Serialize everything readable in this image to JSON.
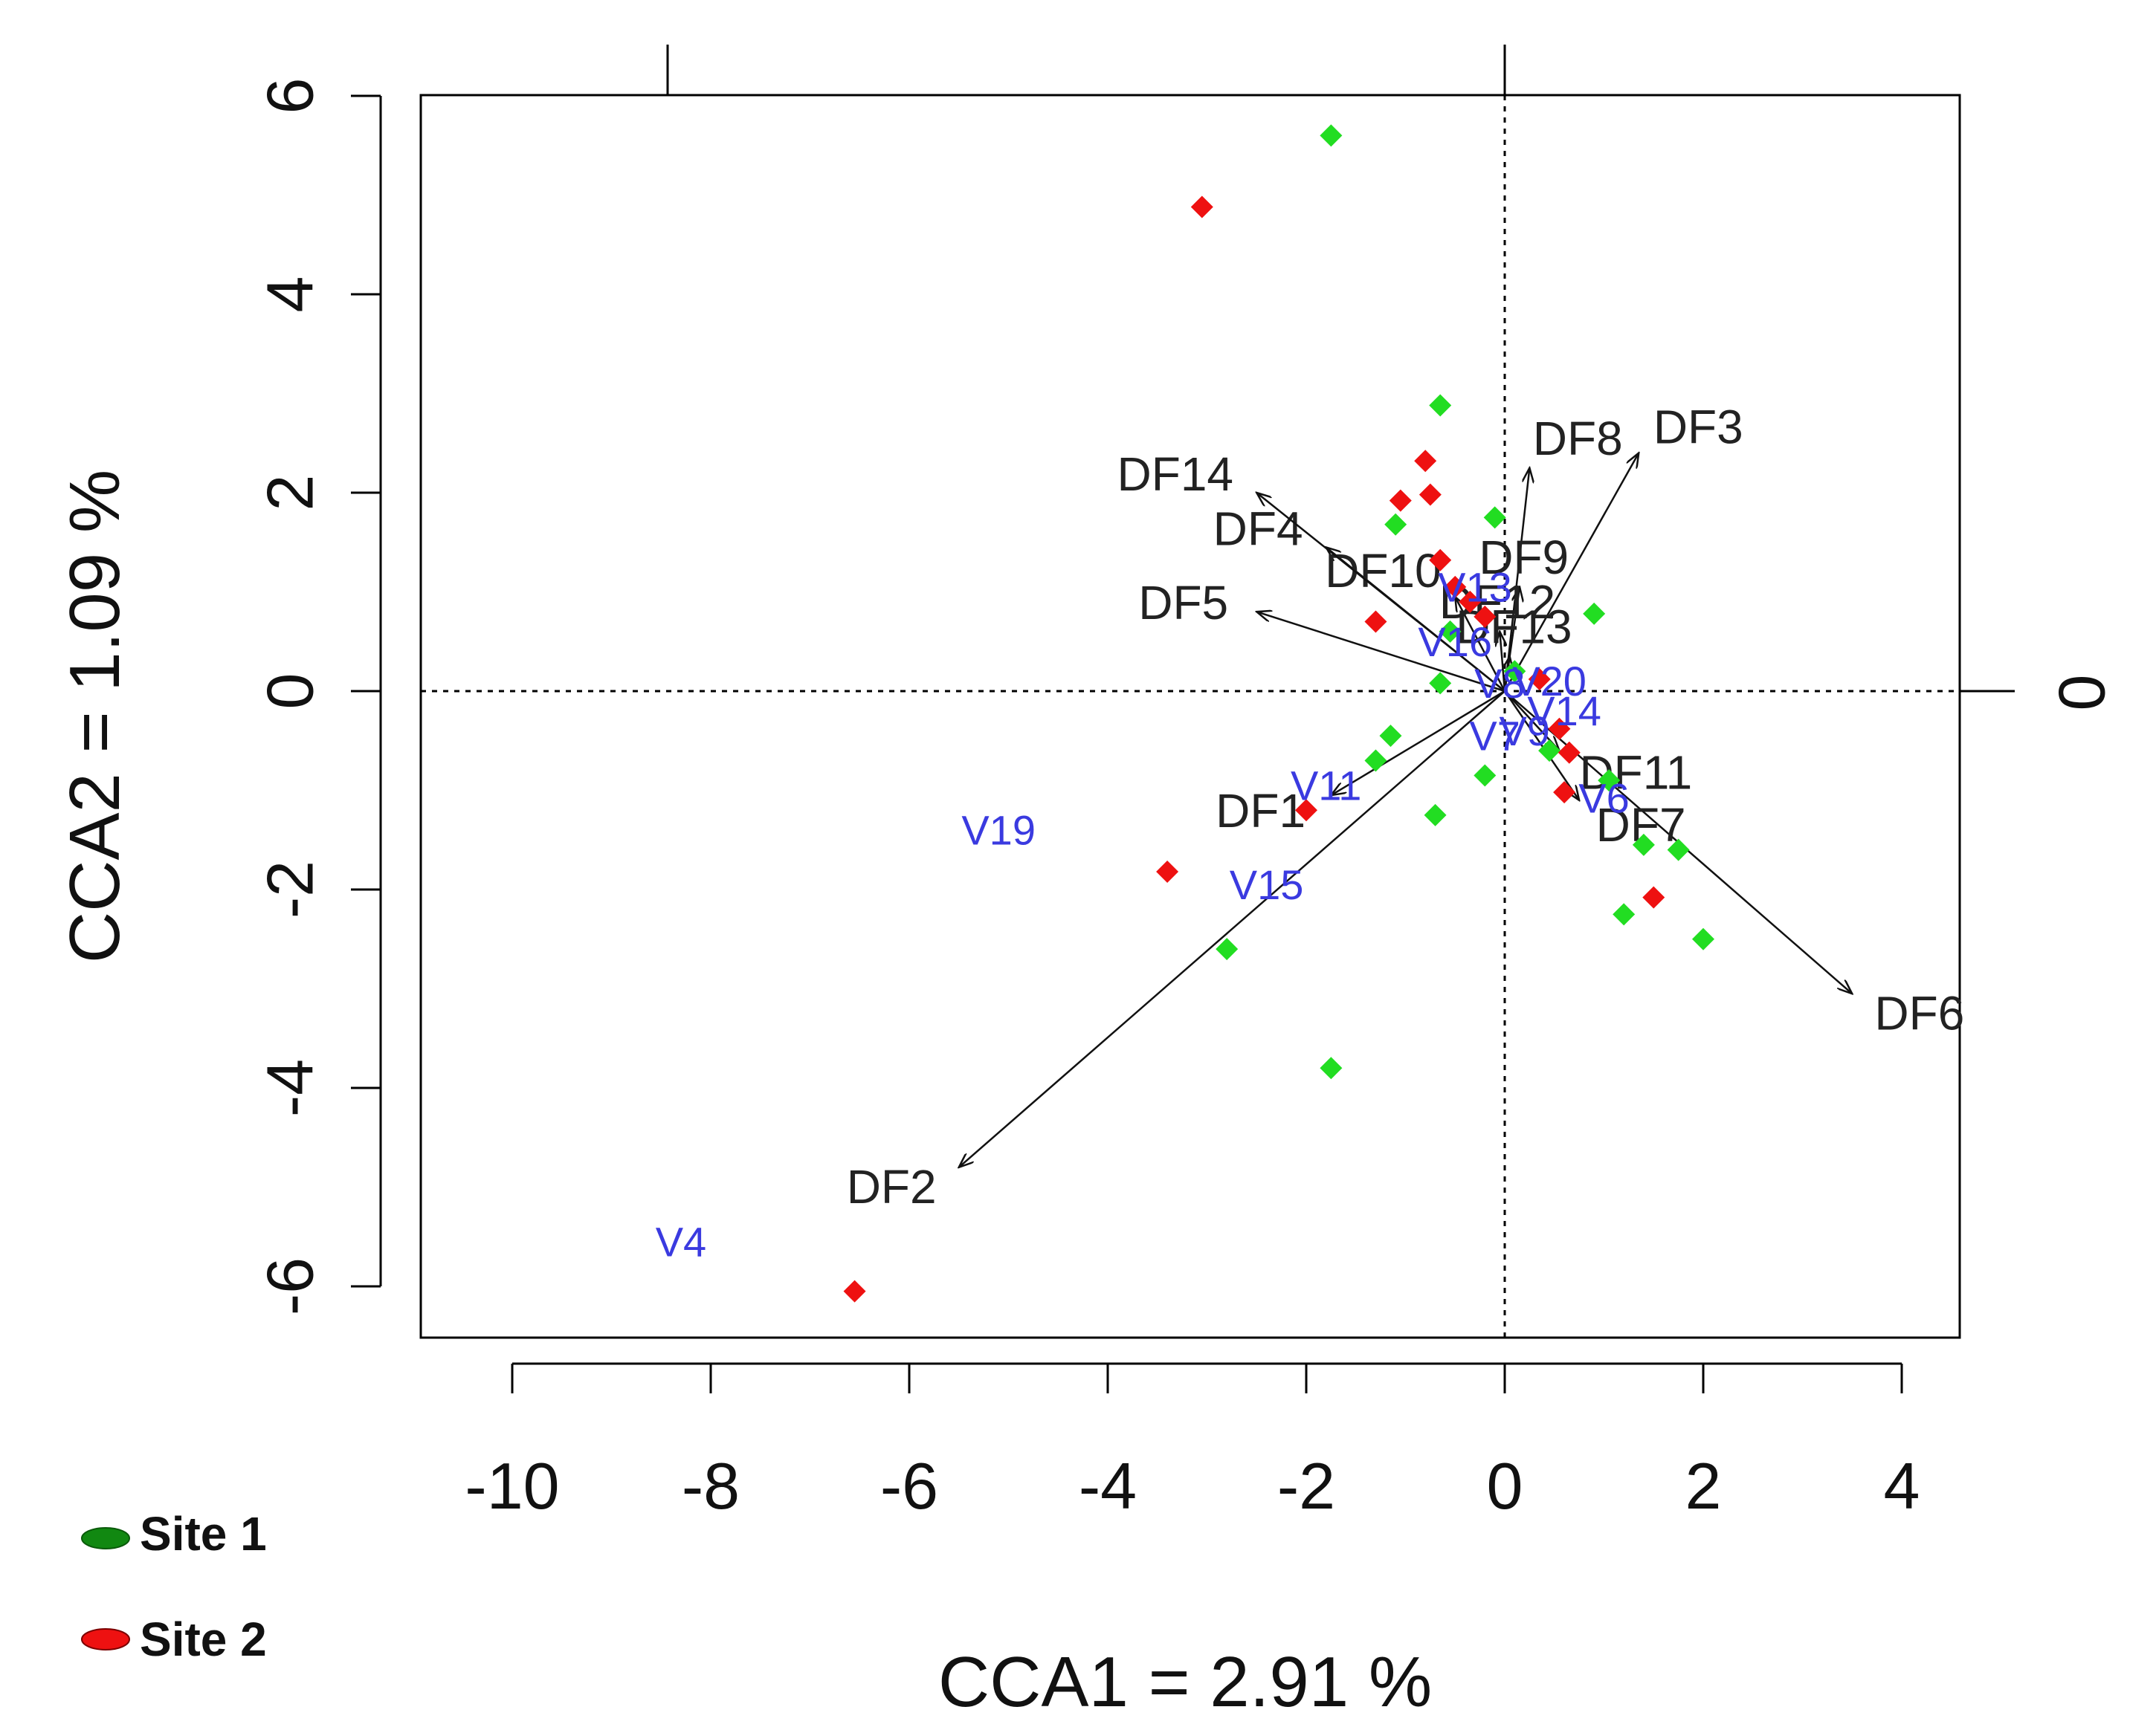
{
  "chart_data": {
    "type": "scatter",
    "subtype": "CCA biplot",
    "xlabel": "CCA1 = 2.91 %",
    "ylabel": "CCA2 = 1.09 %",
    "xlim": [
      -10.5,
      4.6
    ],
    "ylim": [
      -6.6,
      6.1
    ],
    "x_ticks": [
      "-10",
      "-8",
      "-6",
      "-4",
      "-2",
      "0",
      "2",
      "4"
    ],
    "x_tick_values": [
      -10,
      -8,
      -6,
      -4,
      -2,
      0,
      2,
      4
    ],
    "y_ticks": [
      "-6",
      "-4",
      "-2",
      "0",
      "2",
      "4",
      "6"
    ],
    "y_tick_values": [
      -6,
      -4,
      -2,
      0,
      2,
      4,
      6
    ],
    "right_axis_label": "0",
    "reference_lines": {
      "x": 0,
      "y": 0,
      "style": "dotted"
    },
    "series": [
      {
        "name": "Site 1",
        "color": "#22dd22",
        "marker": "diamond",
        "points": [
          [
            -1.75,
            5.6
          ],
          [
            -0.65,
            2.88
          ],
          [
            -1.1,
            1.68
          ],
          [
            -0.1,
            1.75
          ],
          [
            0.9,
            0.78
          ],
          [
            -0.65,
            0.08
          ],
          [
            -0.55,
            0.6
          ],
          [
            -1.15,
            -0.45
          ],
          [
            -1.3,
            -0.7
          ],
          [
            -0.2,
            -0.85
          ],
          [
            -0.7,
            -1.25
          ],
          [
            0.45,
            -0.6
          ],
          [
            1.05,
            -0.9
          ],
          [
            1.4,
            -1.55
          ],
          [
            1.75,
            -1.6
          ],
          [
            1.2,
            -2.25
          ],
          [
            2.0,
            -2.5
          ],
          [
            -2.8,
            -2.6
          ],
          [
            -1.75,
            -3.8
          ],
          [
            0.1,
            0.2
          ]
        ]
      },
      {
        "name": "Site 2",
        "color": "#ee1111",
        "marker": "diamond",
        "points": [
          [
            -3.05,
            4.88
          ],
          [
            -0.8,
            2.32
          ],
          [
            -1.05,
            1.92
          ],
          [
            -0.75,
            1.98
          ],
          [
            -0.65,
            1.32
          ],
          [
            -0.5,
            1.05
          ],
          [
            -0.35,
            0.9
          ],
          [
            -0.2,
            0.75
          ],
          [
            -1.3,
            0.7
          ],
          [
            0.35,
            0.12
          ],
          [
            0.55,
            -0.38
          ],
          [
            0.65,
            -0.62
          ],
          [
            0.6,
            -1.02
          ],
          [
            1.5,
            -2.08
          ],
          [
            -2.0,
            -1.2
          ],
          [
            -3.4,
            -1.82
          ],
          [
            -6.55,
            -6.05
          ]
        ]
      }
    ],
    "vectors": [
      {
        "label": "DF1",
        "x": -1.75,
        "y": -1.05
      },
      {
        "label": "DF2",
        "x": -5.5,
        "y": -4.8
      },
      {
        "label": "DF3",
        "x": 1.35,
        "y": 2.4
      },
      {
        "label": "DF4",
        "x": -1.8,
        "y": 1.45
      },
      {
        "label": "DF5",
        "x": -2.5,
        "y": 0.8
      },
      {
        "label": "DF6",
        "x": 3.5,
        "y": -3.05
      },
      {
        "label": "DF7",
        "x": 0.75,
        "y": -1.1
      },
      {
        "label": "DF8",
        "x": 0.25,
        "y": 2.25
      },
      {
        "label": "DF9",
        "x": 0.15,
        "y": 1.05
      },
      {
        "label": "DF10",
        "x": -0.5,
        "y": 0.95
      },
      {
        "label": "DF11",
        "x": 0.55,
        "y": -0.6
      },
      {
        "label": "DF12",
        "x": -0.05,
        "y": 0.6
      },
      {
        "label": "DF13",
        "x": 0.05,
        "y": 0.35
      },
      {
        "label": "DF14",
        "x": -2.5,
        "y": 2.0
      }
    ],
    "variable_labels": [
      {
        "label": "V19",
        "x": -5.1,
        "y": -1.4
      },
      {
        "label": "V4",
        "x": -8.3,
        "y": -5.55
      },
      {
        "label": "V15",
        "x": -2.4,
        "y": -1.95
      },
      {
        "label": "V11",
        "x": -1.8,
        "y": -0.95
      },
      {
        "label": "V13",
        "x": -0.3,
        "y": 1.05
      },
      {
        "label": "V16",
        "x": -0.5,
        "y": 0.5
      },
      {
        "label": "V20",
        "x": 0.45,
        "y": 0.1
      },
      {
        "label": "V14",
        "x": 0.6,
        "y": -0.2
      },
      {
        "label": "V7",
        "x": -0.1,
        "y": -0.45
      },
      {
        "label": "V6",
        "x": 1.0,
        "y": -1.08
      },
      {
        "label": "V8",
        "x": -0.05,
        "y": 0.08
      },
      {
        "label": "V9",
        "x": 0.2,
        "y": -0.4
      }
    ]
  },
  "legend": {
    "items": [
      {
        "label": "Site 1",
        "color": "#118811"
      },
      {
        "label": "Site 2",
        "color": "#ee1111"
      }
    ]
  }
}
